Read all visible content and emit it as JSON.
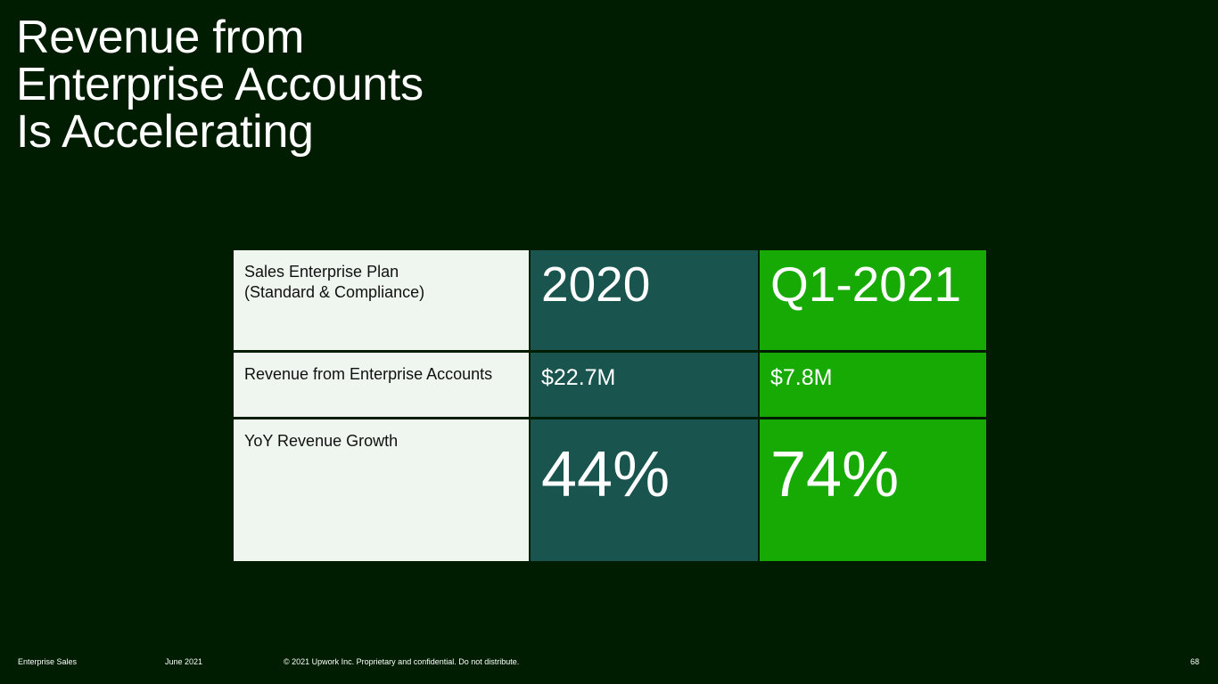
{
  "title": {
    "line1": "Revenue from",
    "line2": "Enterprise Accounts",
    "line3": "Is Accelerating"
  },
  "table": {
    "row1": {
      "label_line1": "Sales Enterprise Plan",
      "label_line2": "(Standard & Compliance)",
      "col_2020": "2020",
      "col_q1_2021": "Q1-2021"
    },
    "row2": {
      "label": "Revenue from Enterprise Accounts",
      "col_2020": "$22.7M",
      "col_q1_2021": "$7.8M"
    },
    "row3": {
      "label": "YoY Revenue Growth",
      "col_2020": "44%",
      "col_q1_2021": "74%"
    }
  },
  "footer": {
    "section": "Enterprise Sales",
    "date": "June 2021",
    "copyright": "© 2021 Upwork Inc. Proprietary and confidential. Do not distribute.",
    "page_number": "68"
  },
  "colors": {
    "background": "#011d01",
    "label_cell": "#eff6ef",
    "col_2020": "#19544f",
    "col_q1_2021": "#17aa04"
  }
}
